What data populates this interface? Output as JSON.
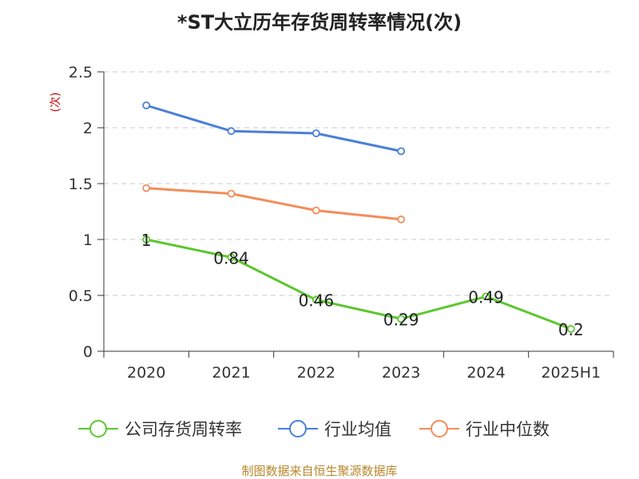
{
  "chart_data": {
    "type": "line",
    "title": "*ST大立历年存货周转率情况(次)",
    "ylabel": "(次)",
    "categories": [
      "2020",
      "2021",
      "2022",
      "2023",
      "2024",
      "2025H1"
    ],
    "ylim": [
      0,
      2.5
    ],
    "yticks": [
      "0",
      "0.5",
      "1",
      "1.5",
      "2",
      "2.5"
    ],
    "grid": true,
    "legend_position": "bottom",
    "series": [
      {
        "name": "公司存货周转率",
        "color": "#5cc72f",
        "values": [
          1,
          0.84,
          0.46,
          0.29,
          0.49,
          0.2
        ],
        "labels": [
          "1",
          "0.84",
          "0.46",
          "0.29",
          "0.49",
          "0.2"
        ],
        "show_labels": true
      },
      {
        "name": "行业均值",
        "color": "#4a7fd9",
        "values": [
          2.2,
          1.97,
          1.95,
          1.79,
          null,
          null
        ],
        "show_labels": false
      },
      {
        "name": "行业中位数",
        "color": "#f48c5a",
        "values": [
          1.46,
          1.41,
          1.26,
          1.18,
          null,
          null
        ],
        "show_labels": false
      }
    ]
  },
  "footer": "制图数据来自恒生聚源数据库"
}
